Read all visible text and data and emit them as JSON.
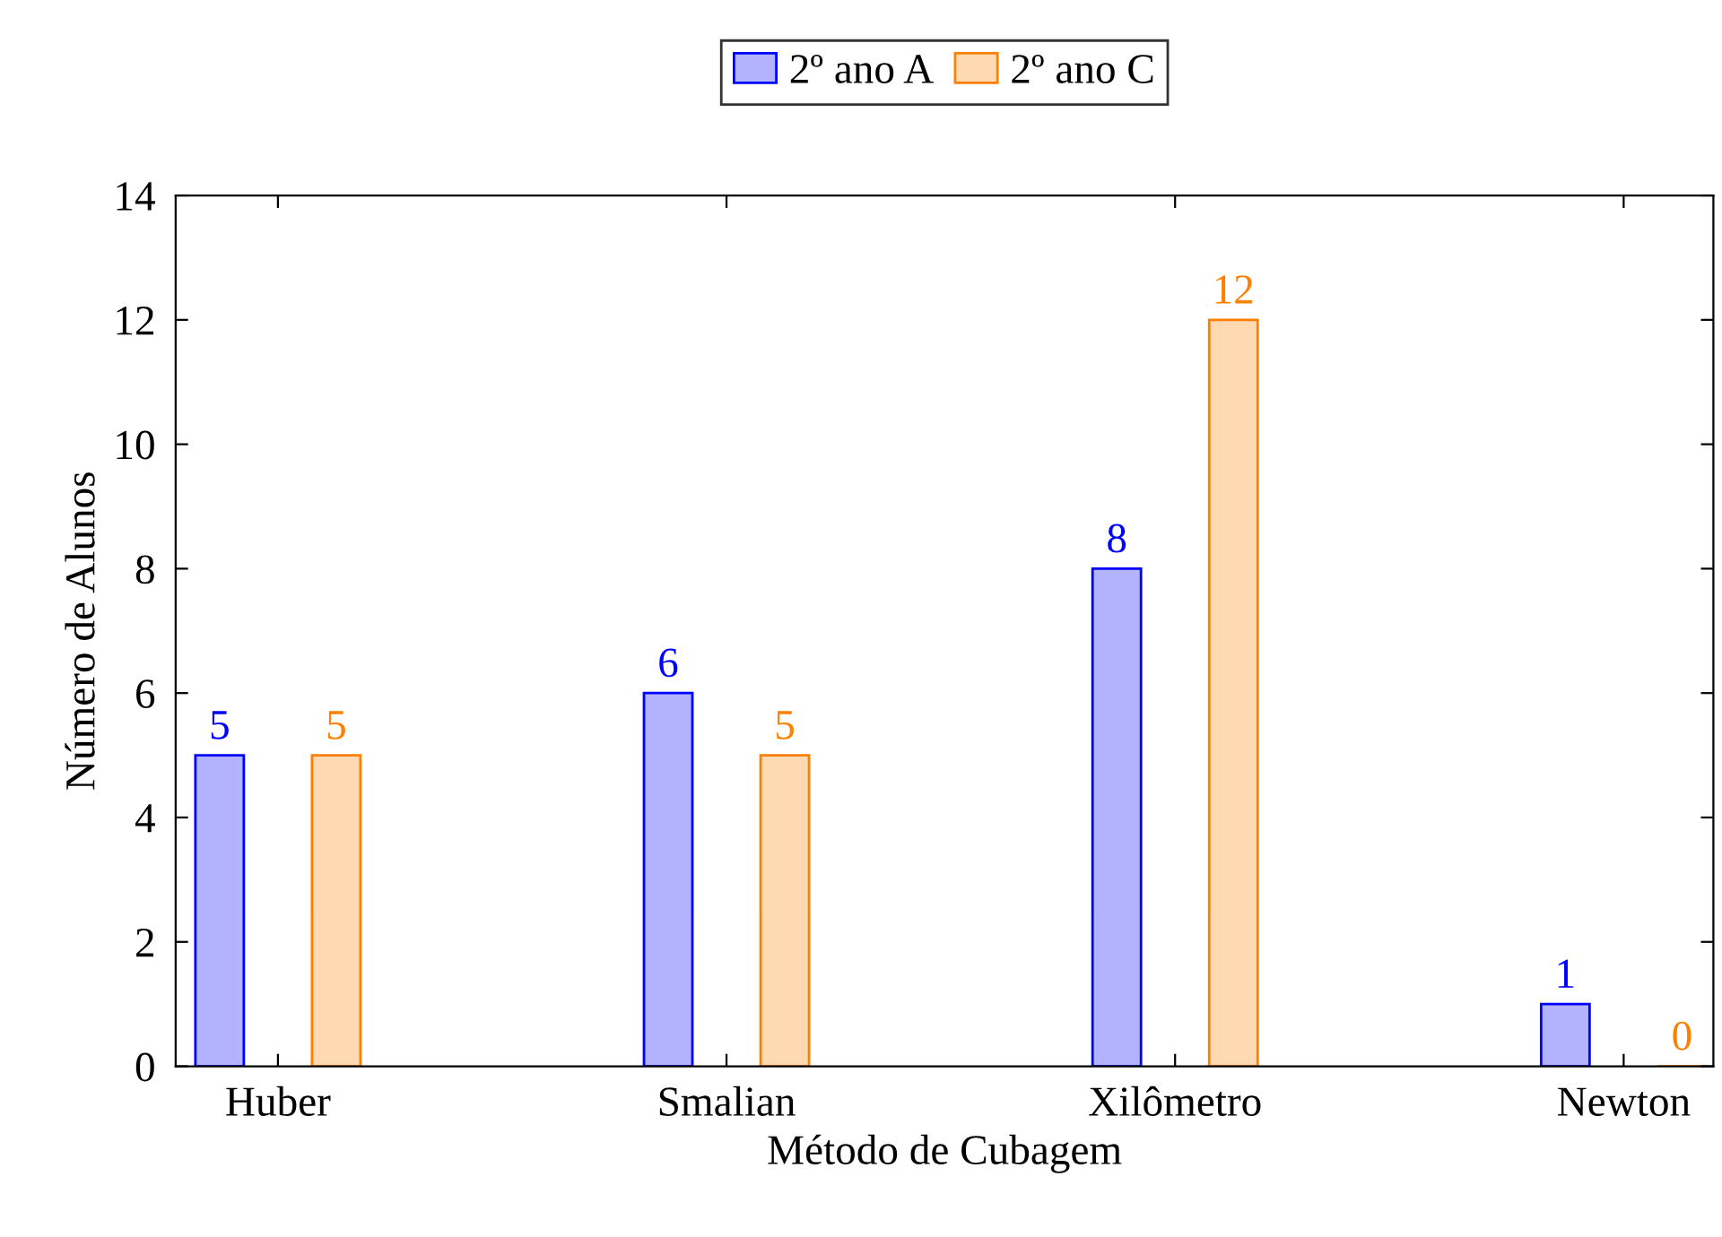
{
  "chart_data": {
    "type": "bar",
    "xlabel": "Método de Cubagem",
    "ylabel": "Número de Alunos",
    "categories": [
      "Huber",
      "Smalian",
      "Xilômetro",
      "Newton"
    ],
    "series": [
      {
        "name": "2º ano A",
        "color": "#0000ff",
        "values": [
          5,
          6,
          8,
          1
        ]
      },
      {
        "name": "2º ano C",
        "color": "#ff8000",
        "values": [
          5,
          5,
          12,
          0
        ]
      }
    ],
    "ylim": [
      0,
      14
    ],
    "yticks": [
      0,
      2,
      4,
      6,
      8,
      10,
      12,
      14
    ],
    "grid": false,
    "legend": "top",
    "data_labels": true
  }
}
